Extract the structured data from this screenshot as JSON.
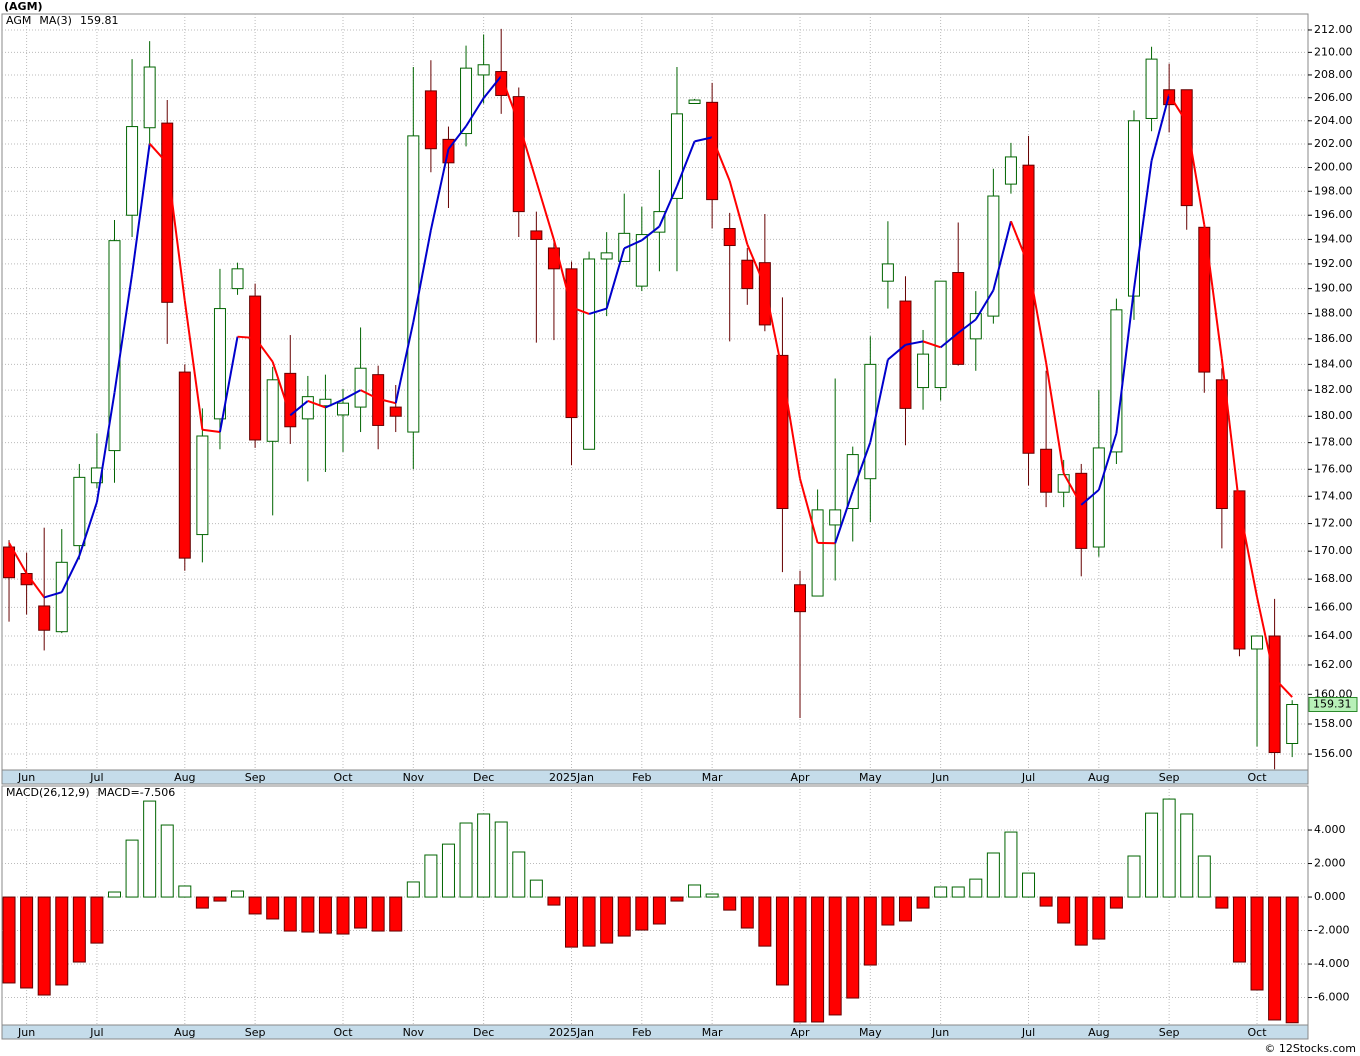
{
  "chart_data": [
    {
      "type": "candlestick",
      "title": "(AGM)",
      "log_scale": true,
      "grid": true,
      "xlim": [
        -0.4,
        73.9
      ],
      "xticks": [
        {
          "value": 1,
          "label": "Jun"
        },
        {
          "value": 5,
          "label": "Jul"
        },
        {
          "value": 10,
          "label": "Aug"
        },
        {
          "value": 14,
          "label": "Sep"
        },
        {
          "value": 19,
          "label": "Oct"
        },
        {
          "value": 23,
          "label": "Nov"
        },
        {
          "value": 27,
          "label": "Dec"
        },
        {
          "value": 32,
          "label": "2025Jan"
        },
        {
          "value": 36,
          "label": "Feb"
        },
        {
          "value": 40,
          "label": "Mar"
        },
        {
          "value": 45,
          "label": "Apr"
        },
        {
          "value": 49,
          "label": "May"
        },
        {
          "value": 53,
          "label": "Jun"
        },
        {
          "value": 58,
          "label": "Jul"
        },
        {
          "value": 62,
          "label": "Aug"
        },
        {
          "value": 66,
          "label": "Sep"
        },
        {
          "value": 71,
          "label": "Oct"
        }
      ],
      "ylim": [
        154.95,
        213.44
      ],
      "yticks": [
        {
          "value": 212,
          "label": "212.00"
        },
        {
          "value": 210,
          "label": "210.00"
        },
        {
          "value": 208,
          "label": "208.00"
        },
        {
          "value": 206,
          "label": "206.00"
        },
        {
          "value": 204,
          "label": "204.00"
        },
        {
          "value": 202,
          "label": "202.00"
        },
        {
          "value": 200,
          "label": "200.00"
        },
        {
          "value": 198,
          "label": "198.00"
        },
        {
          "value": 196,
          "label": "196.00"
        },
        {
          "value": 194,
          "label": "194.00"
        },
        {
          "value": 192,
          "label": "192.00"
        },
        {
          "value": 190,
          "label": "190.00"
        },
        {
          "value": 188,
          "label": "188.00"
        },
        {
          "value": 186,
          "label": "186.00"
        },
        {
          "value": 184,
          "label": "184.00"
        },
        {
          "value": 182,
          "label": "182.00"
        },
        {
          "value": 180,
          "label": "180.00"
        },
        {
          "value": 178,
          "label": "178.00"
        },
        {
          "value": 176,
          "label": "176.00"
        },
        {
          "value": 174,
          "label": "174.00"
        },
        {
          "value": 172,
          "label": "172.00"
        },
        {
          "value": 170,
          "label": "170.00"
        },
        {
          "value": 168,
          "label": "168.00"
        },
        {
          "value": 166,
          "label": "166.00"
        },
        {
          "value": 164,
          "label": "164.00"
        },
        {
          "value": 162,
          "label": "162.00"
        },
        {
          "value": 160,
          "label": "160.00"
        },
        {
          "value": 158,
          "label": "158.00"
        },
        {
          "value": 156,
          "label": "156.00"
        }
      ],
      "series": [
        {
          "name": "AGM",
          "up_color": "#006400",
          "down_color": "#ff0000",
          "last_value_label": "159.31",
          "open": [
            170.3,
            168.4,
            166.1,
            164.3,
            170.4,
            175.0,
            177.4,
            196.0,
            203.4,
            203.8,
            183.4,
            171.2,
            179.8,
            190.0,
            189.4,
            178.1,
            183.3,
            179.8,
            180.8,
            180.1,
            180.7,
            183.2,
            180.7,
            178.8,
            206.6,
            202.4,
            202.9,
            208.0,
            208.3,
            206.1,
            194.7,
            193.3,
            191.6,
            177.5,
            192.4,
            192.2,
            190.2,
            194.6,
            197.4,
            205.5,
            205.6,
            194.9,
            192.3,
            192.1,
            184.7,
            167.6,
            166.8,
            171.9,
            173.1,
            175.3,
            190.6,
            189.0,
            182.2,
            182.2,
            191.3,
            186.0,
            187.8,
            198.6,
            200.2,
            177.5,
            174.3,
            175.7,
            170.3,
            177.3,
            189.4,
            204.2,
            206.7,
            206.7,
            195.0,
            182.8,
            174.4,
            163.1,
            164.0,
            156.7
          ],
          "high": [
            170.8,
            169.9,
            171.7,
            171.6,
            176.4,
            178.7,
            195.6,
            209.4,
            211.0,
            205.8,
            184.0,
            180.6,
            191.6,
            192.1,
            190.4,
            183.8,
            186.3,
            183.1,
            183.2,
            182.1,
            186.9,
            183.9,
            182.4,
            208.7,
            209.3,
            203.5,
            210.6,
            211.6,
            212.1,
            206.9,
            196.3,
            193.9,
            192.2,
            193.0,
            194.6,
            197.8,
            196.7,
            199.8,
            208.7,
            205.9,
            207.3,
            196.2,
            193.3,
            196.1,
            189.3,
            168.6,
            174.5,
            182.9,
            177.7,
            186.2,
            195.5,
            191.0,
            186.7,
            190.6,
            195.4,
            189.8,
            199.9,
            202.1,
            202.7,
            183.5,
            176.7,
            176.4,
            182.0,
            189.2,
            204.9,
            210.5,
            209.0,
            206.7,
            195.0,
            183.7,
            174.4,
            164.0,
            166.6,
            159.6
          ],
          "low": [
            165.0,
            165.5,
            163.0,
            164.2,
            169.4,
            174.6,
            175.0,
            194.2,
            201.6,
            185.6,
            168.6,
            169.2,
            177.5,
            189.5,
            177.6,
            172.6,
            177.9,
            175.1,
            175.8,
            177.3,
            178.8,
            177.5,
            178.8,
            176.0,
            199.6,
            196.6,
            201.8,
            205.5,
            204.6,
            194.2,
            185.7,
            185.9,
            176.3,
            177.5,
            187.8,
            192.2,
            189.8,
            191.4,
            191.4,
            205.5,
            194.9,
            185.8,
            188.7,
            186.6,
            168.5,
            158.4,
            166.8,
            167.9,
            170.7,
            172.1,
            188.4,
            177.8,
            180.5,
            181.2,
            183.9,
            183.5,
            187.2,
            197.8,
            174.8,
            173.2,
            173.2,
            168.2,
            169.6,
            176.4,
            187.5,
            203.1,
            203.0,
            194.8,
            181.8,
            170.2,
            162.6,
            156.5,
            155.0,
            155.8
          ],
          "close": [
            168.1,
            167.6,
            164.4,
            169.2,
            175.4,
            176.1,
            193.9,
            203.5,
            208.7,
            188.9,
            169.5,
            178.5,
            188.4,
            191.6,
            178.2,
            182.8,
            179.2,
            181.5,
            181.3,
            181.0,
            183.7,
            179.3,
            180.0,
            202.7,
            201.6,
            200.4,
            208.6,
            208.9,
            206.2,
            196.3,
            194.0,
            191.6,
            179.9,
            192.4,
            192.9,
            194.5,
            194.4,
            196.3,
            204.6,
            205.8,
            197.3,
            193.5,
            190.0,
            187.1,
            173.1,
            165.7,
            173.0,
            173.0,
            177.1,
            184.0,
            192.0,
            180.6,
            184.8,
            190.6,
            184.0,
            188.0,
            197.6,
            200.9,
            177.2,
            174.3,
            175.6,
            170.2,
            177.6,
            188.3,
            204.0,
            209.4,
            205.4,
            196.8,
            183.4,
            173.1,
            163.1,
            164.0,
            156.1,
            159.31
          ]
        },
        {
          "name": "MA(3)",
          "up_color": "#0000cc",
          "down_color": "#ff0000",
          "value_label": "159.81",
          "values": [
            170.6,
            168.4,
            166.7,
            167.07,
            169.67,
            173.57,
            181.8,
            191.17,
            202.03,
            200.37,
            189.03,
            178.97,
            178.8,
            186.17,
            186.07,
            184.2,
            180.07,
            181.17,
            180.67,
            181.27,
            182.0,
            181.33,
            181.0,
            187.33,
            194.77,
            201.57,
            203.53,
            205.97,
            207.9,
            203.8,
            198.83,
            193.97,
            188.5,
            187.97,
            188.4,
            193.27,
            193.93,
            195.07,
            198.43,
            202.23,
            202.57,
            198.87,
            193.6,
            190.2,
            183.4,
            175.3,
            170.6,
            170.57,
            174.37,
            178.03,
            184.37,
            185.53,
            185.8,
            185.33,
            186.47,
            187.53,
            189.87,
            195.5,
            191.9,
            184.13,
            175.7,
            173.37,
            174.47,
            178.7,
            189.97,
            200.57,
            206.27,
            203.87,
            195.2,
            184.43,
            173.2,
            166.73,
            161.07,
            159.81
          ]
        }
      ]
    },
    {
      "type": "bar",
      "grid": true,
      "xlim": [
        -0.4,
        73.9
      ],
      "xticks": [
        {
          "value": 1,
          "label": "Jun"
        },
        {
          "value": 5,
          "label": "Jul"
        },
        {
          "value": 10,
          "label": "Aug"
        },
        {
          "value": 14,
          "label": "Sep"
        },
        {
          "value": 19,
          "label": "Oct"
        },
        {
          "value": 23,
          "label": "Nov"
        },
        {
          "value": 27,
          "label": "Dec"
        },
        {
          "value": 32,
          "label": "2025Jan"
        },
        {
          "value": 36,
          "label": "Feb"
        },
        {
          "value": 40,
          "label": "Mar"
        },
        {
          "value": 45,
          "label": "Apr"
        },
        {
          "value": 49,
          "label": "May"
        },
        {
          "value": 53,
          "label": "Jun"
        },
        {
          "value": 58,
          "label": "Jul"
        },
        {
          "value": 62,
          "label": "Aug"
        },
        {
          "value": 66,
          "label": "Sep"
        },
        {
          "value": 71,
          "label": "Oct"
        }
      ],
      "ylim": [
        -7.64,
        6.63
      ],
      "yticks": [
        {
          "value": 4,
          "label": "4.000"
        },
        {
          "value": 2,
          "label": "2.000"
        },
        {
          "value": 0,
          "label": "0.000"
        },
        {
          "value": -2,
          "label": "-2.000"
        },
        {
          "value": -4,
          "label": "-4.000"
        },
        {
          "value": -6,
          "label": "-6.000"
        }
      ],
      "series": [
        {
          "name": "MACD(26,12,9)",
          "up_color": "#006400",
          "down_color": "#ff0000",
          "value_label": "MACD=-7.506",
          "values": [
            -5.13,
            -5.43,
            -5.85,
            -5.25,
            -3.88,
            -2.75,
            0.3,
            3.4,
            5.73,
            4.3,
            0.66,
            -0.66,
            -0.24,
            0.36,
            -1.01,
            -1.31,
            -2.03,
            -2.09,
            -2.15,
            -2.21,
            -1.85,
            -2.03,
            -2.03,
            0.9,
            2.51,
            3.16,
            4.42,
            4.96,
            4.48,
            2.69,
            1.01,
            -0.48,
            -2.99,
            -2.93,
            -2.75,
            -2.33,
            -1.97,
            -1.61,
            -0.24,
            0.72,
            0.18,
            -0.78,
            -1.85,
            -2.93,
            -5.25,
            -7.46,
            -7.46,
            -7.04,
            -6.03,
            -4.06,
            -1.67,
            -1.43,
            -0.66,
            0.6,
            0.6,
            1.07,
            2.63,
            3.88,
            1.43,
            -0.54,
            -1.55,
            -2.87,
            -2.51,
            -0.66,
            2.45,
            5.01,
            5.85,
            4.96,
            2.45,
            -0.66,
            -3.88,
            -5.55,
            -7.34,
            -7.506
          ]
        }
      ]
    }
  ],
  "footer": "© 12Stocks.com"
}
